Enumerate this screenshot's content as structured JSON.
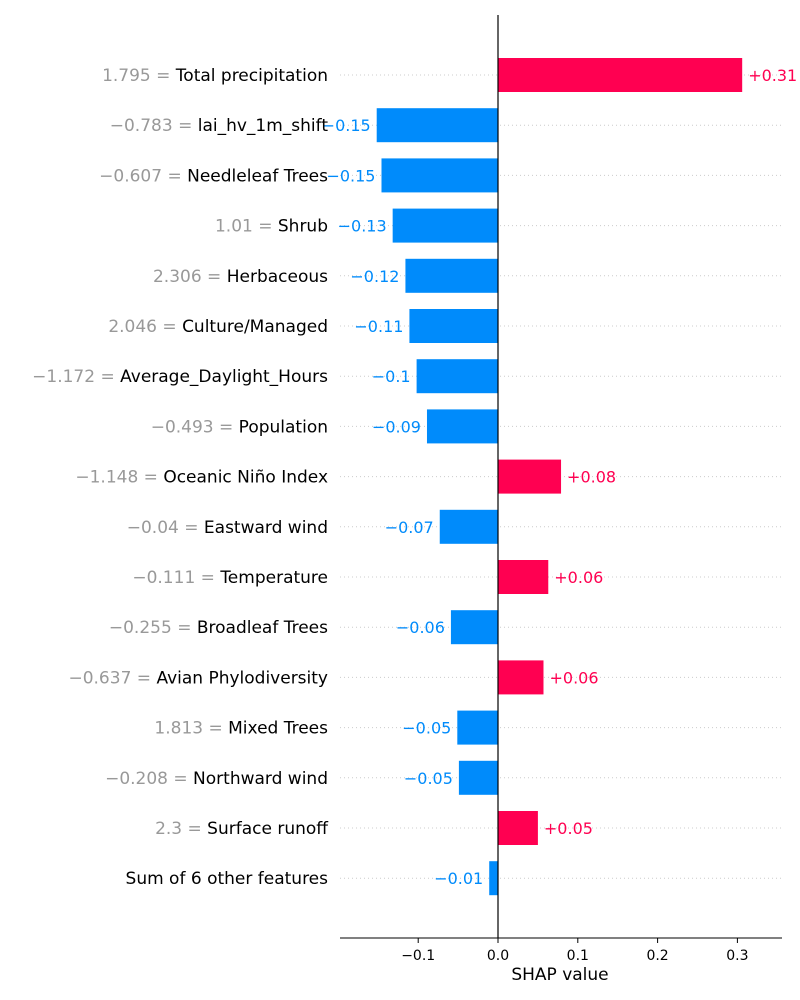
{
  "chart_data": {
    "type": "bar",
    "orientation": "horizontal",
    "xlabel": "SHAP value",
    "xlim": [
      -0.2,
      0.355
    ],
    "xticks": [
      {
        "value": -0.1,
        "label": "−0.1"
      },
      {
        "value": 0.0,
        "label": "0.0"
      },
      {
        "value": 0.1,
        "label": "0.1"
      },
      {
        "value": 0.2,
        "label": "0.2"
      },
      {
        "value": 0.3,
        "label": "0.3"
      }
    ],
    "grid": "horizontal-dotted",
    "colors": {
      "positive": "#ff0051",
      "negative": "#008bfb"
    },
    "features": [
      {
        "value": "1.795",
        "name": "Total precipitation",
        "shap": 0.306,
        "label": "+0.31"
      },
      {
        "value": "−0.783",
        "name": "lai_hv_1m_shift",
        "shap": -0.152,
        "label": "−0.15"
      },
      {
        "value": "−0.607",
        "name": "Needleleaf Trees",
        "shap": -0.146,
        "label": "−0.15"
      },
      {
        "value": "1.01",
        "name": "Shrub",
        "shap": -0.132,
        "label": "−0.13"
      },
      {
        "value": "2.306",
        "name": "Herbaceous",
        "shap": -0.116,
        "label": "−0.12"
      },
      {
        "value": "2.046",
        "name": "Culture/Managed",
        "shap": -0.111,
        "label": "−0.11"
      },
      {
        "value": "−1.172",
        "name": "Average_Daylight_Hours",
        "shap": -0.102,
        "label": "−0.1"
      },
      {
        "value": "−0.493",
        "name": "Population",
        "shap": -0.089,
        "label": "−0.09"
      },
      {
        "value": "−1.148",
        "name": "Oceanic Niño Index",
        "shap": 0.079,
        "label": "+0.08"
      },
      {
        "value": "−0.04",
        "name": "Eastward wind",
        "shap": -0.073,
        "label": "−0.07"
      },
      {
        "value": "−0.111",
        "name": "Temperature",
        "shap": 0.063,
        "label": "+0.06"
      },
      {
        "value": "−0.255",
        "name": "Broadleaf Trees",
        "shap": -0.059,
        "label": "−0.06"
      },
      {
        "value": "−0.637",
        "name": "Avian Phylodiversity",
        "shap": 0.057,
        "label": "+0.06"
      },
      {
        "value": "1.813",
        "name": "Mixed Trees",
        "shap": -0.051,
        "label": "−0.05"
      },
      {
        "value": "−0.208",
        "name": "Northward wind",
        "shap": -0.049,
        "label": "−0.05"
      },
      {
        "value": "2.3",
        "name": "Surface runoff",
        "shap": 0.05,
        "label": "+0.05"
      },
      {
        "value": "",
        "name": "Sum of 6 other features",
        "shap": -0.011,
        "label": "−0.01"
      }
    ]
  }
}
